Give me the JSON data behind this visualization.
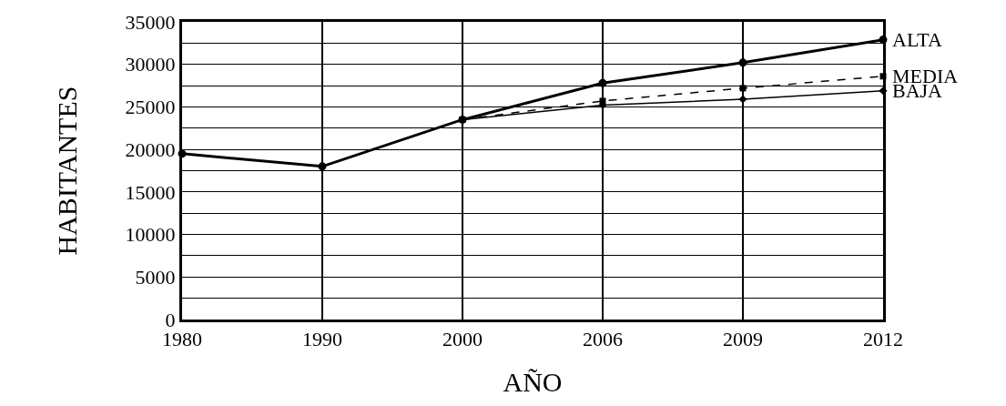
{
  "chart_data": {
    "type": "line",
    "xlabel": "AÑO",
    "ylabel": "HABITANTES",
    "categories": [
      "1980",
      "1990",
      "2000",
      "2006",
      "2009",
      "2012"
    ],
    "series": [
      {
        "name": "ALTA",
        "color": "#000000",
        "marker": "circle",
        "line_style": "solid",
        "values": [
          19500,
          18000,
          23500,
          27800,
          30200,
          32900
        ]
      },
      {
        "name": "MEDIA",
        "color": "#000000",
        "marker": "square",
        "line_style": "dashed",
        "values": [
          null,
          null,
          23500,
          25700,
          27200,
          28600
        ]
      },
      {
        "name": "BAJA",
        "color": "#000000",
        "marker": "diamond",
        "line_style": "solid",
        "values": [
          null,
          null,
          23500,
          25200,
          25900,
          26900
        ]
      }
    ],
    "ylim": [
      0,
      35000
    ],
    "yticks": [
      0,
      {
        "value": 2500,
        "label": null
      },
      5000,
      {
        "value": 7500,
        "label": null
      },
      10000,
      {
        "value": 12500,
        "label": null
      },
      15000,
      {
        "value": 17500,
        "label": null
      },
      20000,
      {
        "value": 22500,
        "label": null
      },
      25000,
      {
        "value": 27500,
        "label": null
      },
      30000,
      {
        "value": 32500,
        "label": null
      },
      35000
    ],
    "grid": true,
    "legend": false
  }
}
